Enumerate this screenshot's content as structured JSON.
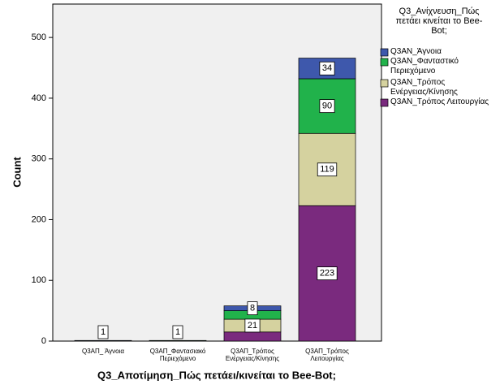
{
  "chart_data": {
    "type": "stacked_bar",
    "x_label": "Q3_Αποτίμηση_Πώς πετάει/κινείται το Bee-Bot;",
    "y_label": "Count",
    "categories": [
      "Q3ΑΠ_ Άγνοια",
      "Q3ΑΠ_Φαντασιακό\nΠεριεχόμενο",
      "Q3ΑΠ_Τρόπος\nΕνέργειας/Κίνησης",
      "Q3ΑΠ_Τρόπος\nΛειτουργίας"
    ],
    "legend_title": "Q3_Ανίχνευση_Πώς\nπετάει κινείται το Bee-\nBot;",
    "series": [
      {
        "name": "Q3AN_Άγνοια",
        "color": "#3e58ac",
        "values": [
          1,
          null,
          8,
          34
        ],
        "value_labels": [
          "1",
          null,
          "8",
          "34"
        ]
      },
      {
        "name": "Q3AN_Φανταστικό\nΠεριεχόμενο",
        "color": "#21b24b",
        "values": [
          null,
          1,
          14,
          90
        ],
        "value_labels": [
          null,
          "1",
          null,
          "90"
        ]
      },
      {
        "name": "Q3AN_Τρόπος\nΕνέργειας/Κίνησης",
        "color": "#d5d29f",
        "values": [
          null,
          null,
          21,
          119
        ],
        "value_labels": [
          null,
          null,
          "21",
          "119"
        ]
      },
      {
        "name": "Q3AN_Τρόπος Λειτουργίας",
        "color": "#7a2a7e",
        "values": [
          null,
          null,
          15,
          223
        ],
        "value_labels": [
          null,
          null,
          null,
          "223"
        ]
      }
    ],
    "ylim": [
      0,
      555
    ],
    "yticks": [
      0,
      100,
      200,
      300,
      400,
      500
    ]
  }
}
